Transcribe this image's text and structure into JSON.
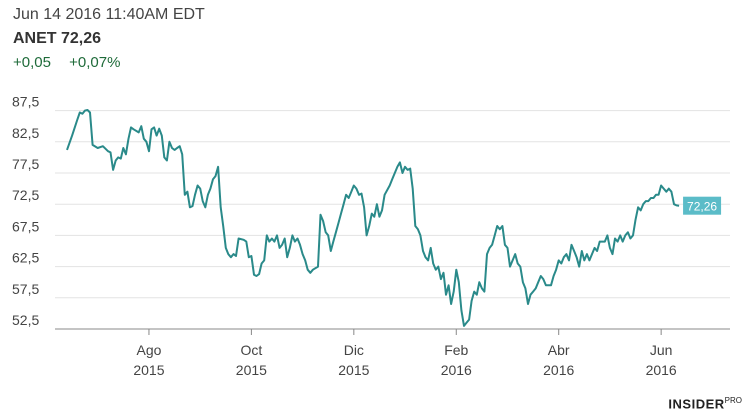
{
  "header": {
    "datetime": "Jun 14 2016 11:40AM EDT",
    "ticker_line": "ANET 72,26",
    "change_abs": "+0,05",
    "change_pct": "+0,07%"
  },
  "colors": {
    "line": "#2a8a8a",
    "grid": "#e3e3e3",
    "axis": "#888888",
    "label_bg": "#5bbcc8"
  },
  "brand": {
    "name": "INSIDER",
    "suffix": "PRO"
  },
  "chart_data": {
    "type": "line",
    "title": "ANET 72,26",
    "xlabel": "",
    "ylabel": "",
    "ylim": [
      52.5,
      90.0
    ],
    "yticks": [
      "87,5",
      "82,5",
      "77,5",
      "72,5",
      "67,5",
      "62,5",
      "57,5",
      "52,5"
    ],
    "ytick_values": [
      87.5,
      82.5,
      77.5,
      72.5,
      67.5,
      62.5,
      57.5,
      52.5
    ],
    "xlim": [
      0,
      12.3
    ],
    "xticks": [
      {
        "month": "Ago",
        "year": "2015",
        "t": 1.6
      },
      {
        "month": "Oct",
        "year": "2015",
        "t": 3.6
      },
      {
        "month": "Dic",
        "year": "2015",
        "t": 5.6
      },
      {
        "month": "Feb",
        "year": "2016",
        "t": 7.6
      },
      {
        "month": "Abr",
        "year": "2016",
        "t": 9.6
      },
      {
        "month": "Jun",
        "year": "2016",
        "t": 11.6
      }
    ],
    "last_value_label": "72,26",
    "series": [
      {
        "name": "ANET",
        "points": [
          [
            0.0,
            81.2
          ],
          [
            0.1,
            83.5
          ],
          [
            0.2,
            86.0
          ],
          [
            0.25,
            87.2
          ],
          [
            0.3,
            87.0
          ],
          [
            0.35,
            87.5
          ],
          [
            0.4,
            87.6
          ],
          [
            0.45,
            87.2
          ],
          [
            0.5,
            82.0
          ],
          [
            0.6,
            81.5
          ],
          [
            0.7,
            81.8
          ],
          [
            0.8,
            81.0
          ],
          [
            0.85,
            80.8
          ],
          [
            0.9,
            78.0
          ],
          [
            0.95,
            79.5
          ],
          [
            1.0,
            80.0
          ],
          [
            1.05,
            79.8
          ],
          [
            1.1,
            81.5
          ],
          [
            1.15,
            80.5
          ],
          [
            1.2,
            83.0
          ],
          [
            1.25,
            84.8
          ],
          [
            1.3,
            84.5
          ],
          [
            1.4,
            84.0
          ],
          [
            1.45,
            85.0
          ],
          [
            1.5,
            83.0
          ],
          [
            1.55,
            82.5
          ],
          [
            1.6,
            81.0
          ],
          [
            1.65,
            84.5
          ],
          [
            1.7,
            84.8
          ],
          [
            1.75,
            83.5
          ],
          [
            1.8,
            84.6
          ],
          [
            1.85,
            83.5
          ],
          [
            1.9,
            80.0
          ],
          [
            1.95,
            79.5
          ],
          [
            2.0,
            82.5
          ],
          [
            2.05,
            81.5
          ],
          [
            2.1,
            81.2
          ],
          [
            2.15,
            81.5
          ],
          [
            2.2,
            81.8
          ],
          [
            2.25,
            80.5
          ],
          [
            2.3,
            74.0
          ],
          [
            2.35,
            74.5
          ],
          [
            2.4,
            72.0
          ],
          [
            2.45,
            72.2
          ],
          [
            2.5,
            74.0
          ],
          [
            2.55,
            75.5
          ],
          [
            2.6,
            75.0
          ],
          [
            2.65,
            73.0
          ],
          [
            2.7,
            72.0
          ],
          [
            2.75,
            74.0
          ],
          [
            2.8,
            75.0
          ],
          [
            2.85,
            76.5
          ],
          [
            2.9,
            77.0
          ],
          [
            2.95,
            78.5
          ],
          [
            3.0,
            72.0
          ],
          [
            3.05,
            69.0
          ],
          [
            3.1,
            65.5
          ],
          [
            3.15,
            64.5
          ],
          [
            3.2,
            64.0
          ],
          [
            3.25,
            64.5
          ],
          [
            3.3,
            64.2
          ],
          [
            3.35,
            67.0
          ],
          [
            3.45,
            66.8
          ],
          [
            3.5,
            66.5
          ],
          [
            3.55,
            64.0
          ],
          [
            3.6,
            64.2
          ],
          [
            3.65,
            61.2
          ],
          [
            3.7,
            61.0
          ],
          [
            3.75,
            61.3
          ],
          [
            3.8,
            63.0
          ],
          [
            3.85,
            63.5
          ],
          [
            3.9,
            67.5
          ],
          [
            3.95,
            66.5
          ],
          [
            4.0,
            67.0
          ],
          [
            4.05,
            66.5
          ],
          [
            4.1,
            67.5
          ],
          [
            4.15,
            65.5
          ],
          [
            4.2,
            66.0
          ],
          [
            4.25,
            67.0
          ],
          [
            4.3,
            64.0
          ],
          [
            4.35,
            65.5
          ],
          [
            4.4,
            67.5
          ],
          [
            4.45,
            66.5
          ],
          [
            4.5,
            67.0
          ],
          [
            4.55,
            66.0
          ],
          [
            4.6,
            64.5
          ],
          [
            4.65,
            63.5
          ],
          [
            4.7,
            62.0
          ],
          [
            4.75,
            61.5
          ],
          [
            4.8,
            62.0
          ],
          [
            4.9,
            62.5
          ],
          [
            4.95,
            70.8
          ],
          [
            5.0,
            69.8
          ],
          [
            5.05,
            68.0
          ],
          [
            5.1,
            67.5
          ],
          [
            5.15,
            65.0
          ],
          [
            5.2,
            66.5
          ],
          [
            5.25,
            68.0
          ],
          [
            5.3,
            69.5
          ],
          [
            5.35,
            71.0
          ],
          [
            5.4,
            72.5
          ],
          [
            5.45,
            74.0
          ],
          [
            5.5,
            73.5
          ],
          [
            5.55,
            74.5
          ],
          [
            5.6,
            75.5
          ],
          [
            5.65,
            75.0
          ],
          [
            5.7,
            74.0
          ],
          [
            5.75,
            74.2
          ],
          [
            5.8,
            72.0
          ],
          [
            5.85,
            67.5
          ],
          [
            5.9,
            69.0
          ],
          [
            5.95,
            71.0
          ],
          [
            6.0,
            70.5
          ],
          [
            6.05,
            72.5
          ],
          [
            6.1,
            70.5
          ],
          [
            6.15,
            71.5
          ],
          [
            6.2,
            74.0
          ],
          [
            6.3,
            75.5
          ],
          [
            6.35,
            76.5
          ],
          [
            6.45,
            78.5
          ],
          [
            6.5,
            79.2
          ],
          [
            6.55,
            77.5
          ],
          [
            6.6,
            78.5
          ],
          [
            6.65,
            78.0
          ],
          [
            6.7,
            78.2
          ],
          [
            6.75,
            75.0
          ],
          [
            6.8,
            69.0
          ],
          [
            6.85,
            68.5
          ],
          [
            6.9,
            67.5
          ],
          [
            6.95,
            65.0
          ],
          [
            7.0,
            64.0
          ],
          [
            7.05,
            63.5
          ],
          [
            7.1,
            65.5
          ],
          [
            7.15,
            63.0
          ],
          [
            7.2,
            62.0
          ],
          [
            7.25,
            62.5
          ],
          [
            7.3,
            60.5
          ],
          [
            7.35,
            61.5
          ],
          [
            7.4,
            58.0
          ],
          [
            7.45,
            59.5
          ],
          [
            7.5,
            56.5
          ],
          [
            7.55,
            58.5
          ],
          [
            7.6,
            62.0
          ],
          [
            7.65,
            60.0
          ],
          [
            7.7,
            55.5
          ],
          [
            7.75,
            53.0
          ],
          [
            7.8,
            53.5
          ],
          [
            7.85,
            54.0
          ],
          [
            7.9,
            57.0
          ],
          [
            7.95,
            58.5
          ],
          [
            8.0,
            58.0
          ],
          [
            8.05,
            60.0
          ],
          [
            8.1,
            59.0
          ],
          [
            8.15,
            58.5
          ],
          [
            8.2,
            64.5
          ],
          [
            8.25,
            65.5
          ],
          [
            8.3,
            66.0
          ],
          [
            8.35,
            67.5
          ],
          [
            8.4,
            69.0
          ],
          [
            8.45,
            68.5
          ],
          [
            8.5,
            69.0
          ],
          [
            8.55,
            66.0
          ],
          [
            8.6,
            65.5
          ],
          [
            8.65,
            62.5
          ],
          [
            8.7,
            63.5
          ],
          [
            8.75,
            64.5
          ],
          [
            8.8,
            63.0
          ],
          [
            8.85,
            62.5
          ],
          [
            8.9,
            60.0
          ],
          [
            8.95,
            59.0
          ],
          [
            9.0,
            56.5
          ],
          [
            9.05,
            58.0
          ],
          [
            9.1,
            58.5
          ],
          [
            9.15,
            59.0
          ],
          [
            9.2,
            60.0
          ],
          [
            9.25,
            61.0
          ],
          [
            9.3,
            60.5
          ],
          [
            9.35,
            59.5
          ],
          [
            9.45,
            59.5
          ],
          [
            9.5,
            61.0
          ],
          [
            9.55,
            62.0
          ],
          [
            9.6,
            63.5
          ],
          [
            9.65,
            63.0
          ],
          [
            9.7,
            64.0
          ],
          [
            9.75,
            64.5
          ],
          [
            9.8,
            63.5
          ],
          [
            9.85,
            66.0
          ],
          [
            9.9,
            65.0
          ],
          [
            9.95,
            64.0
          ],
          [
            10.0,
            62.5
          ],
          [
            10.05,
            65.0
          ],
          [
            10.1,
            63.5
          ],
          [
            10.15,
            64.5
          ],
          [
            10.2,
            63.5
          ],
          [
            10.25,
            64.5
          ],
          [
            10.3,
            65.5
          ],
          [
            10.35,
            65.0
          ],
          [
            10.4,
            66.5
          ],
          [
            10.5,
            66.5
          ],
          [
            10.55,
            67.5
          ],
          [
            10.6,
            65.5
          ],
          [
            10.65,
            64.5
          ],
          [
            10.7,
            67.0
          ],
          [
            10.75,
            66.5
          ],
          [
            10.8,
            67.5
          ],
          [
            10.85,
            66.5
          ],
          [
            10.9,
            67.5
          ],
          [
            10.95,
            68.0
          ],
          [
            11.0,
            67.0
          ],
          [
            11.05,
            67.5
          ],
          [
            11.1,
            70.0
          ],
          [
            11.15,
            72.0
          ],
          [
            11.2,
            71.5
          ],
          [
            11.25,
            72.5
          ],
          [
            11.3,
            73.0
          ],
          [
            11.35,
            73.0
          ],
          [
            11.4,
            73.5
          ],
          [
            11.45,
            73.5
          ],
          [
            11.5,
            74.0
          ],
          [
            11.55,
            74.0
          ],
          [
            11.6,
            75.5
          ],
          [
            11.65,
            75.0
          ],
          [
            11.7,
            74.5
          ],
          [
            11.75,
            75.0
          ],
          [
            11.8,
            74.5
          ],
          [
            11.85,
            72.5
          ],
          [
            11.9,
            72.3
          ],
          [
            11.95,
            72.26
          ]
        ]
      }
    ]
  }
}
